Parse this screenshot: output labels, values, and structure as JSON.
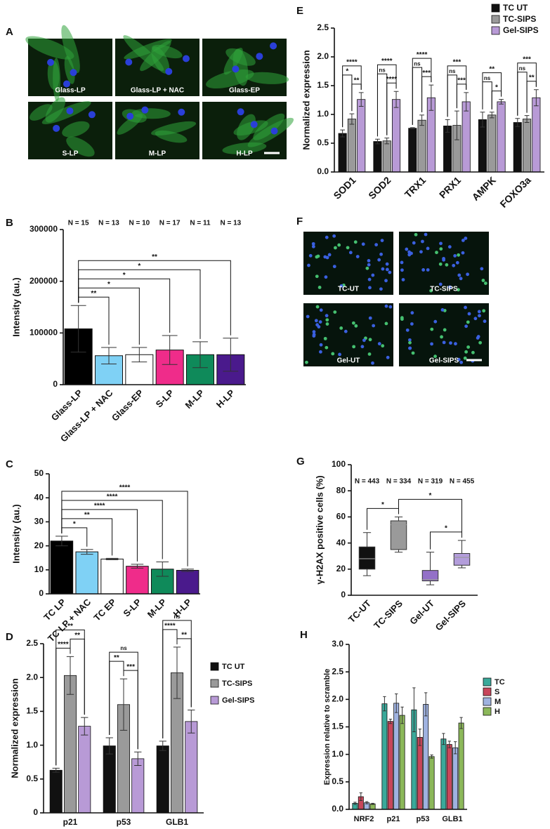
{
  "images": [
    {
      "panel": "A",
      "labels": [
        "Glass-LP",
        "Glass-LP + NAC",
        "Glass-EP",
        "S-LP",
        "M-LP",
        "H-LP"
      ]
    },
    {
      "panel": "F",
      "labels": [
        "TC-UT",
        "TC-SIPS",
        "Gel-UT",
        "Gel-SIPS"
      ]
    }
  ],
  "chart_data": [
    {
      "panel": "B",
      "type": "bar",
      "ylabel": "Intensity (au.)",
      "categories": [
        "Glass-LP",
        "Glass-LP + NAC",
        "Glass-EP",
        "S-LP",
        "M-LP",
        "H-LP"
      ],
      "values": [
        108000,
        56000,
        58000,
        67000,
        58000,
        58000
      ],
      "errors": [
        45000,
        16000,
        14000,
        28000,
        25000,
        32000
      ],
      "colors": [
        "#000000",
        "#7fd1f5",
        "#ffffff",
        "#ef2c8a",
        "#0f8a5a",
        "#4a1a8c"
      ],
      "ylim": [
        0,
        300000
      ],
      "yticks": [
        0,
        100000,
        200000,
        300000
      ],
      "n_labels": [
        "N = 15",
        "N = 13",
        "N = 10",
        "N = 17",
        "N = 11",
        "N = 13"
      ],
      "annotations": [
        {
          "between": [
            "Glass-LP",
            "Glass-LP + NAC"
          ],
          "label": "**"
        },
        {
          "between": [
            "Glass-LP",
            "Glass-EP"
          ],
          "label": "*"
        },
        {
          "between": [
            "Glass-LP",
            "S-LP"
          ],
          "label": "*"
        },
        {
          "between": [
            "Glass-LP",
            "M-LP"
          ],
          "label": "*"
        },
        {
          "between": [
            "Glass-LP",
            "H-LP"
          ],
          "label": "**"
        }
      ]
    },
    {
      "panel": "C",
      "type": "bar",
      "ylabel": "Intensity (au.)",
      "categories": [
        "TC LP",
        "TC LP + NAC",
        "TC EP",
        "S-LP",
        "M-LP",
        "H-LP"
      ],
      "values": [
        22,
        17.5,
        14.5,
        11.5,
        10.3,
        9.8
      ],
      "errors": [
        2,
        1,
        0.3,
        0.8,
        3,
        0.5
      ],
      "colors": [
        "#000000",
        "#7fd1f5",
        "#ffffff",
        "#ef2c8a",
        "#0f8a5a",
        "#4a1a8c"
      ],
      "ylim": [
        0,
        50
      ],
      "yticks": [
        0,
        10,
        20,
        30,
        40,
        50
      ],
      "annotations": [
        {
          "between": [
            "TC LP",
            "TC LP + NAC"
          ],
          "label": "*"
        },
        {
          "between": [
            "TC LP",
            "TC EP"
          ],
          "label": "**"
        },
        {
          "between": [
            "TC LP",
            "S-LP"
          ],
          "label": "****"
        },
        {
          "between": [
            "TC LP",
            "M-LP"
          ],
          "label": "****"
        },
        {
          "between": [
            "TC LP",
            "H-LP"
          ],
          "label": "****"
        }
      ]
    },
    {
      "panel": "D",
      "type": "grouped_bar",
      "ylabel": "Normalized expression",
      "categories": [
        "p21",
        "p53",
        "GLB1"
      ],
      "series": [
        {
          "name": "TC UT",
          "color": "#111111",
          "values": [
            0.63,
            0.99,
            0.99
          ],
          "errors": [
            0.03,
            0.12,
            0.07
          ]
        },
        {
          "name": "TC-SIPS",
          "color": "#9a9a9a",
          "values": [
            2.03,
            1.6,
            2.07
          ],
          "errors": [
            0.28,
            0.38,
            0.38
          ]
        },
        {
          "name": "Gel-SIPS",
          "color": "#b89ad6",
          "values": [
            1.28,
            0.8,
            1.35
          ],
          "errors": [
            0.13,
            0.1,
            0.17
          ]
        }
      ],
      "ylim": [
        0,
        2.5
      ],
      "yticks": [
        0,
        0.5,
        {
          "value": 1,
          "label": "1.0"
        },
        1.5,
        {
          "value": 2,
          "label": "2.0"
        },
        2.5
      ],
      "annotations": [
        {
          "category": "p21",
          "between": [
            "TC UT",
            "TC-SIPS"
          ],
          "label": "****"
        },
        {
          "category": "p21",
          "between": [
            "TC-SIPS",
            "Gel-SIPS"
          ],
          "label": "**"
        },
        {
          "category": "p21",
          "between": [
            "TC UT",
            "Gel-SIPS"
          ],
          "label": "**"
        },
        {
          "category": "p53",
          "between": [
            "TC UT",
            "TC-SIPS"
          ],
          "label": "**"
        },
        {
          "category": "p53",
          "between": [
            "TC-SIPS",
            "Gel-SIPS"
          ],
          "label": "***"
        },
        {
          "category": "p53",
          "between": [
            "TC UT",
            "Gel-SIPS"
          ],
          "label": "ns"
        },
        {
          "category": "GLB1",
          "between": [
            "TC UT",
            "TC-SIPS"
          ],
          "label": "****"
        },
        {
          "category": "GLB1",
          "between": [
            "TC-SIPS",
            "Gel-SIPS"
          ],
          "label": "**"
        },
        {
          "category": "GLB1",
          "between": [
            "TC UT",
            "Gel-SIPS"
          ],
          "label": "ns"
        }
      ]
    },
    {
      "panel": "E",
      "type": "grouped_bar",
      "ylabel": "Normalized expression",
      "categories": [
        "SOD1",
        "SOD2",
        "TRX1",
        "PRX1",
        "AMPK",
        "FOXO3a"
      ],
      "series": [
        {
          "name": "TC UT",
          "color": "#111111",
          "values": [
            0.67,
            0.53,
            0.76,
            0.8,
            0.91,
            0.86
          ],
          "errors": [
            0.06,
            0.04,
            0.01,
            0.11,
            0.13,
            0.07
          ]
        },
        {
          "name": "TC-SIPS",
          "color": "#9a9a9a",
          "values": [
            0.92,
            0.54,
            0.9,
            0.81,
            0.99,
            0.92
          ],
          "errors": [
            0.09,
            0.05,
            0.09,
            0.25,
            0.05,
            0.06
          ]
        },
        {
          "name": "Gel-SIPS",
          "color": "#b89ad6",
          "values": [
            1.26,
            1.26,
            1.29,
            1.22,
            1.22,
            1.29
          ],
          "errors": [
            0.12,
            0.14,
            0.22,
            0.16,
            0.04,
            0.14
          ]
        }
      ],
      "ylim": [
        0,
        2.5
      ],
      "yticks": [
        {
          "value": 0,
          "label": "0.0"
        },
        0.5,
        {
          "value": 1,
          "label": "1.0"
        },
        1.5,
        {
          "value": 2,
          "label": "2.0"
        },
        2.5
      ],
      "annotations": [
        {
          "category": "SOD1",
          "between": [
            "TC UT",
            "TC-SIPS"
          ],
          "label": "*"
        },
        {
          "category": "SOD1",
          "between": [
            "TC-SIPS",
            "Gel-SIPS"
          ],
          "label": "**"
        },
        {
          "category": "SOD1",
          "between": [
            "TC UT",
            "Gel-SIPS"
          ],
          "label": "****"
        },
        {
          "category": "SOD2",
          "between": [
            "TC UT",
            "TC-SIPS"
          ],
          "label": "ns"
        },
        {
          "category": "SOD2",
          "between": [
            "TC-SIPS",
            "Gel-SIPS"
          ],
          "label": "****"
        },
        {
          "category": "SOD2",
          "between": [
            "TC UT",
            "Gel-SIPS"
          ],
          "label": "****"
        },
        {
          "category": "TRX1",
          "between": [
            "TC UT",
            "TC-SIPS"
          ],
          "label": "ns"
        },
        {
          "category": "TRX1",
          "between": [
            "TC-SIPS",
            "Gel-SIPS"
          ],
          "label": "***"
        },
        {
          "category": "TRX1",
          "between": [
            "TC UT",
            "Gel-SIPS"
          ],
          "label": "****"
        },
        {
          "category": "PRX1",
          "between": [
            "TC UT",
            "TC-SIPS"
          ],
          "label": "ns"
        },
        {
          "category": "PRX1",
          "between": [
            "TC-SIPS",
            "Gel-SIPS"
          ],
          "label": "***"
        },
        {
          "category": "PRX1",
          "between": [
            "TC UT",
            "Gel-SIPS"
          ],
          "label": "***"
        },
        {
          "category": "AMPK",
          "between": [
            "TC UT",
            "TC-SIPS"
          ],
          "label": "ns"
        },
        {
          "category": "AMPK",
          "between": [
            "TC-SIPS",
            "Gel-SIPS"
          ],
          "label": "*"
        },
        {
          "category": "AMPK",
          "between": [
            "TC UT",
            "Gel-SIPS"
          ],
          "label": "**"
        },
        {
          "category": "FOXO3a",
          "between": [
            "TC UT",
            "TC-SIPS"
          ],
          "label": "ns"
        },
        {
          "category": "FOXO3a",
          "between": [
            "TC-SIPS",
            "Gel-SIPS"
          ],
          "label": "**"
        },
        {
          "category": "FOXO3a",
          "between": [
            "TC UT",
            "Gel-SIPS"
          ],
          "label": "***"
        }
      ]
    },
    {
      "panel": "G",
      "type": "box",
      "ylabel": "γ-H2AX positive cells (%)",
      "categories": [
        "TC-UT",
        "TC-SIPS",
        "Gel-UT",
        "Gel-SIPS"
      ],
      "boxes": [
        {
          "min": 15,
          "q1": 20,
          "median": 28,
          "q3": 37,
          "max": 48
        },
        {
          "min": 33,
          "q1": 35,
          "median": 54,
          "q3": 57,
          "max": 60
        },
        {
          "min": 8,
          "q1": 11,
          "median": 12,
          "q3": 19,
          "max": 33
        },
        {
          "min": 21,
          "q1": 23,
          "median": 29,
          "q3": 32,
          "max": 42
        }
      ],
      "colors": [
        "#111111",
        "#9a9a9a",
        "#9370c8",
        "#b39ddb"
      ],
      "ylim": [
        0,
        100
      ],
      "yticks": [
        0,
        20,
        40,
        60,
        80,
        100
      ],
      "n_labels": [
        "N = 443",
        "N = 334",
        "N = 319",
        "N = 455"
      ],
      "annotations": [
        {
          "between": [
            "TC-UT",
            "TC-SIPS"
          ],
          "label": "*"
        },
        {
          "between": [
            "Gel-UT",
            "Gel-SIPS"
          ],
          "label": "*"
        },
        {
          "between": [
            "TC-SIPS",
            "Gel-SIPS"
          ],
          "label": "*"
        }
      ]
    },
    {
      "panel": "H",
      "type": "grouped_bar",
      "ylabel": "Expression relative to scramble",
      "categories": [
        "NRF2",
        "p21",
        "p53",
        "GLB1"
      ],
      "series": [
        {
          "name": "TC",
          "color": "#3aa99a",
          "values": [
            0.11,
            1.92,
            1.81,
            1.28
          ],
          "errors": [
            0.02,
            0.13,
            0.4,
            0.1
          ]
        },
        {
          "name": "S",
          "color": "#c8465a",
          "values": [
            0.23,
            1.6,
            1.31,
            1.18
          ],
          "errors": [
            0.07,
            0.04,
            0.15,
            0.06
          ]
        },
        {
          "name": "M",
          "color": "#9fb2e0",
          "values": [
            0.12,
            1.93,
            1.91,
            1.12
          ],
          "errors": [
            0.02,
            0.17,
            0.21,
            0.11
          ]
        },
        {
          "name": "H",
          "color": "#8cb85a",
          "values": [
            0.1,
            1.71,
            0.96,
            1.57
          ],
          "errors": [
            0.01,
            0.15,
            0.03,
            0.1
          ]
        }
      ],
      "ylim": [
        0,
        3
      ],
      "yticks": [
        {
          "value": 0,
          "label": "0.0"
        },
        0.5,
        {
          "value": 1,
          "label": "1.0"
        },
        1.5,
        {
          "value": 2,
          "label": "2.0"
        },
        2.5,
        {
          "value": 3,
          "label": "3.0"
        }
      ]
    }
  ]
}
